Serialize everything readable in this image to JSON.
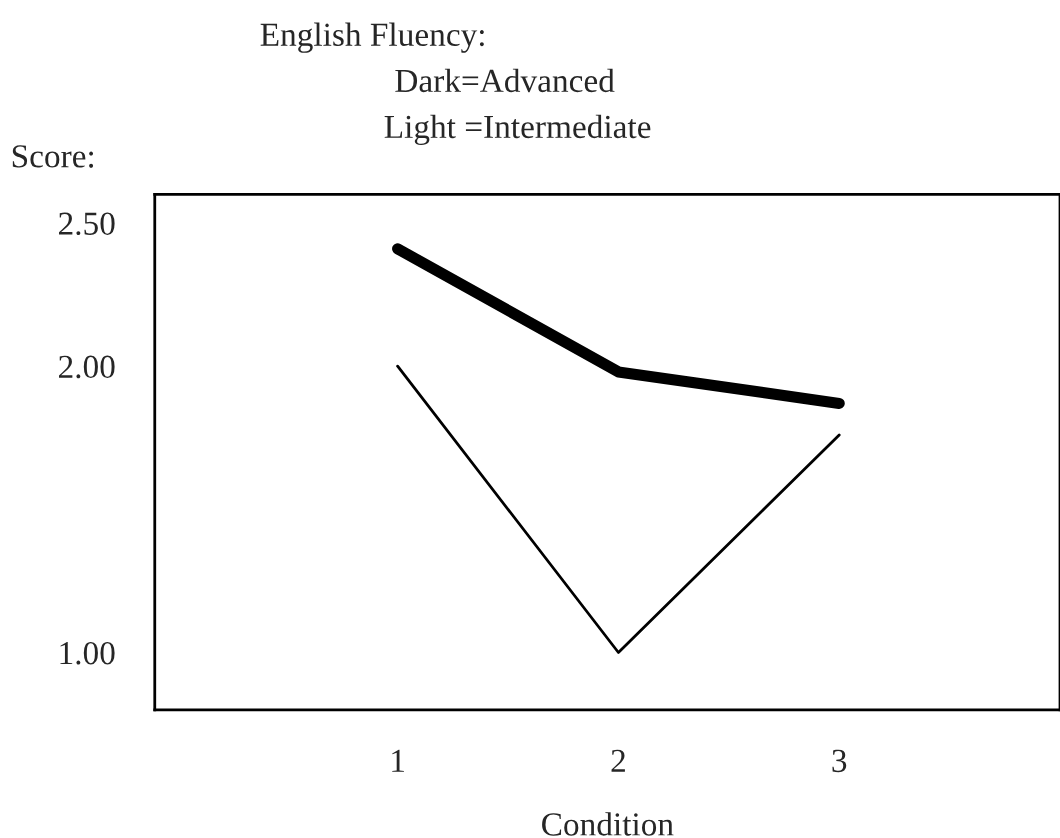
{
  "chart_data": {
    "type": "line",
    "title": "English Fluency:",
    "ylabel": "Score:",
    "xlabel": "Condition",
    "annotations": [
      "Dark=Advanced",
      "Light =Intermediate"
    ],
    "categories": [
      "1",
      "2",
      "3"
    ],
    "series": [
      {
        "color": "#000000",
        "values": [
          2.41,
          1.98,
          1.87
        ]
      },
      {
        "color": "#000000",
        "values": [
          2.0,
          1.0,
          1.76
        ]
      }
    ],
    "ylim": [
      0.8,
      2.6
    ],
    "yticks": [
      {
        "value": 1.0,
        "label": "1.00"
      },
      {
        "value": 2.0,
        "label": "2.00"
      },
      {
        "value": 2.5,
        "label": "2.50"
      }
    ],
    "grid": false,
    "legend": false,
    "marker": "none",
    "line_style": "solid"
  }
}
